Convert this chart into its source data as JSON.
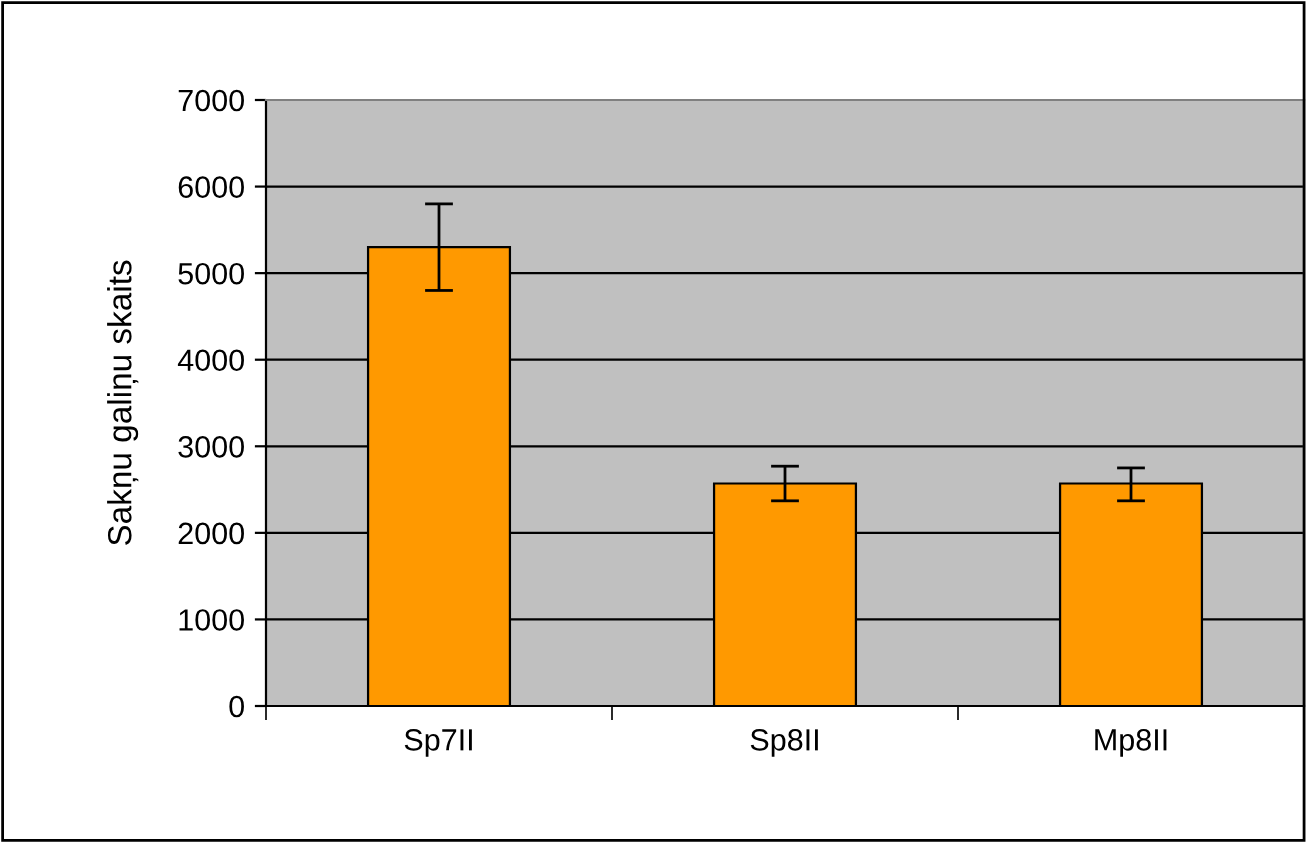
{
  "chart_data": {
    "type": "bar",
    "ylabel": "Sakņu galiņu skaits",
    "categories": [
      "Sp7II",
      "Sp8II",
      "Mp8II"
    ],
    "values": [
      5300,
      2570,
      2570
    ],
    "color": "#ff9900",
    "errors": [
      500,
      200,
      [
        2370,
        2750
      ]
    ],
    "ylim": [
      0,
      7000
    ],
    "yticks": [
      0,
      1000,
      2000,
      3000,
      4000,
      5000,
      6000,
      7000
    ],
    "grid": "y",
    "legend": false
  }
}
